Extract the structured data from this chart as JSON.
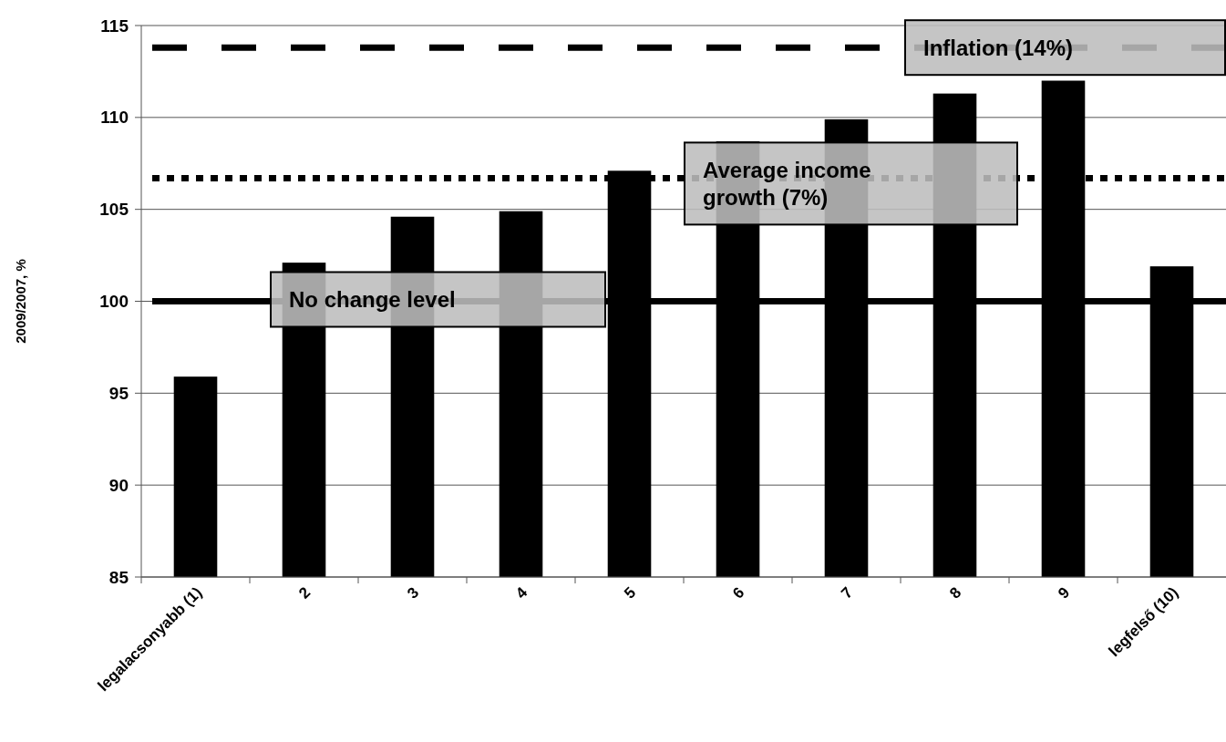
{
  "chart_data": {
    "type": "bar",
    "ylabel": "2009/2007, %",
    "categories": [
      "legalacsonyabb (1)",
      "2",
      "3",
      "4",
      "5",
      "6",
      "7",
      "8",
      "9",
      "legfelső (10)"
    ],
    "values": [
      95.9,
      102.1,
      104.6,
      104.9,
      107.1,
      108.7,
      109.9,
      111.3,
      112.0,
      101.9
    ],
    "color": "#000000",
    "ylim": [
      85,
      115
    ],
    "yticks": [
      85,
      90,
      95,
      100,
      105,
      110,
      115
    ],
    "grid": "y",
    "ref_lines": [
      {
        "axis": "y",
        "value": 113.8,
        "label": "Inflation (14%)",
        "color": "#000000",
        "line_style": "dashed"
      },
      {
        "axis": "y",
        "value": 106.7,
        "label": "Average income growth (7%)",
        "color": "#000000",
        "line_style": "dotted"
      },
      {
        "axis": "y",
        "value": 100,
        "label": "No change level",
        "color": "#000000",
        "line_style": "solid"
      }
    ]
  }
}
